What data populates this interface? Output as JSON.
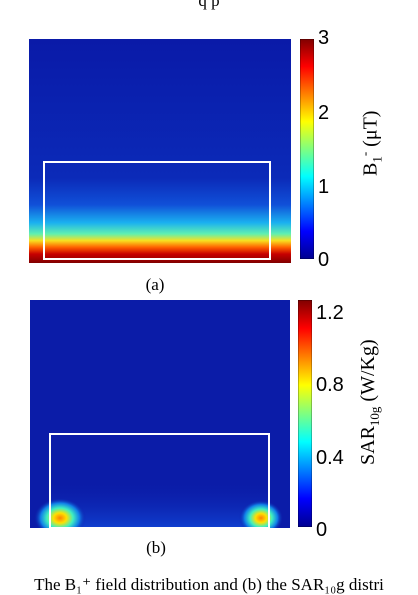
{
  "top_caption_fragment": "q p",
  "bottom_caption_fragment": "The B₁⁺ field distribution and (b) the SAR₁₀g distri",
  "chart_data": [
    {
      "type": "heatmap",
      "panel_label": "(a)",
      "colorbar": {
        "label_main": "B",
        "label_sub": "1",
        "label_sup": "-",
        "label_unit": "(μT)",
        "ticks": [
          "3",
          "2",
          "1",
          "0"
        ],
        "range": [
          0,
          3
        ],
        "colormap": "jet"
      },
      "region_box": "white rectangle over lower region of phantom",
      "description_values": {
        "bottom_edge_intensity": 3,
        "top_region_intensity": 0
      }
    },
    {
      "type": "heatmap",
      "panel_label": "(b)",
      "colorbar": {
        "label_main": "SAR",
        "label_sub": "10g",
        "label_unit": "(W/Kg)",
        "ticks": [
          "1.2",
          "0.8",
          "0.4",
          "0"
        ],
        "range": [
          0,
          1.3
        ],
        "colormap": "jet"
      },
      "hotspots": [
        "bottom-left corner",
        "bottom-right corner"
      ]
    }
  ],
  "colors": {
    "jet_low": "#00008f",
    "jet_bg": "#0a1fb0",
    "jet_high": "#7f0000",
    "box": "#ffffff"
  }
}
